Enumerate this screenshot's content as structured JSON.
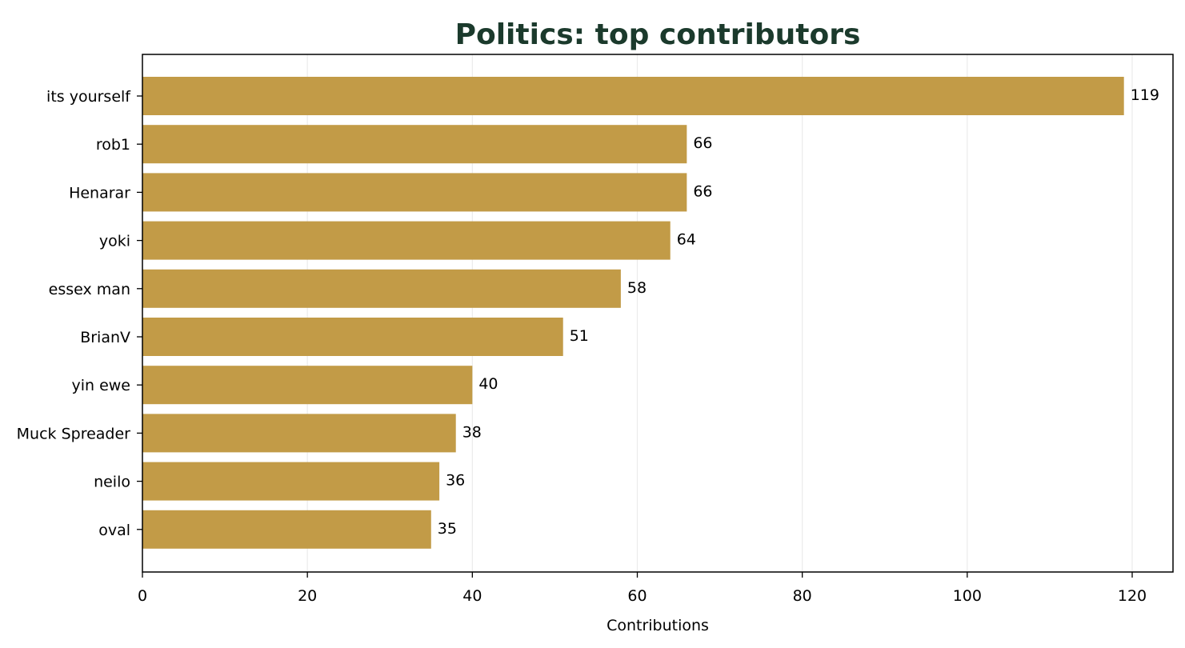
{
  "chart_data": {
    "type": "bar",
    "orientation": "horizontal",
    "title": "Politics: top contributors",
    "xlabel": "Contributions",
    "ylabel": "",
    "categories": [
      "its yourself",
      "rob1",
      "Henarar",
      "yoki",
      "essex man",
      "BrianV",
      "yin ewe",
      "Muck Spreader",
      "neilo",
      "oval"
    ],
    "values": [
      119,
      66,
      66,
      64,
      58,
      51,
      40,
      38,
      36,
      35
    ],
    "xlim": [
      0,
      125
    ],
    "xticks": [
      0,
      20,
      40,
      60,
      80,
      100,
      120
    ],
    "grid": "vertical",
    "legend": "none"
  },
  "colors": {
    "bar": "#c29b47",
    "title": "#1b3a2c",
    "grid": "#ebebeb",
    "axis": "#000000"
  }
}
